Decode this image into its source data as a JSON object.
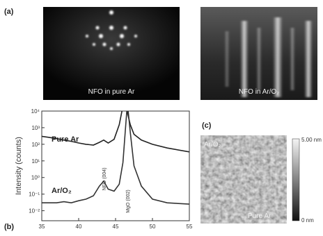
{
  "panels": {
    "a": {
      "label": "(a)",
      "left_caption": "NFO in pure Ar",
      "right_caption": "NFO in Ar/O₂"
    },
    "c": {
      "label": "(c)",
      "main_caption": "Ar/O₂",
      "inset_caption": "Pure Ar",
      "scale_top": "5.00 nm",
      "scale_bottom": "0 nm"
    }
  },
  "chart_data": {
    "type": "line",
    "panel_label": "(b)",
    "y_label": "Intensity (counts)",
    "log_y": true,
    "x": [
      35,
      36,
      37,
      38,
      39,
      40,
      41,
      42,
      42.8,
      43.4,
      44,
      44.8,
      45.5,
      46,
      46.3,
      46.6,
      47,
      47.5,
      48.5,
      50,
      52,
      55
    ],
    "series": [
      {
        "name": "Pure Ar",
        "color": "#222222",
        "values": [
          300,
          260,
          220,
          180,
          150,
          120,
          100,
          90,
          130,
          180,
          120,
          200,
          1500,
          20000,
          30000,
          8000,
          1500,
          400,
          180,
          100,
          60,
          35
        ]
      },
      {
        "name": "Ar/O₂",
        "color": "#333333",
        "values": [
          0.03,
          0.03,
          0.03,
          0.035,
          0.03,
          0.04,
          0.05,
          0.08,
          0.3,
          0.6,
          0.2,
          0.15,
          0.4,
          8,
          500,
          30000,
          500,
          5,
          0.3,
          0.05,
          0.03,
          0.025
        ]
      }
    ],
    "annotations": [
      "NFO (004)",
      "MgO (002)"
    ],
    "xlim": [
      35,
      55
    ],
    "xticks": [
      35,
      40,
      45,
      50,
      55
    ],
    "ylim": [
      0.0025,
      10000
    ],
    "yticks": [
      {
        "value": 10000,
        "label": "10⁴"
      },
      {
        "value": 1000,
        "label": "10³"
      },
      {
        "value": 100,
        "label": "10²"
      },
      {
        "value": 10,
        "label": "10¹"
      },
      {
        "value": 1,
        "label": "10⁰"
      },
      {
        "value": 0.1,
        "label": "10⁻¹"
      },
      {
        "value": 0.01,
        "label": "10⁻²"
      }
    ]
  }
}
